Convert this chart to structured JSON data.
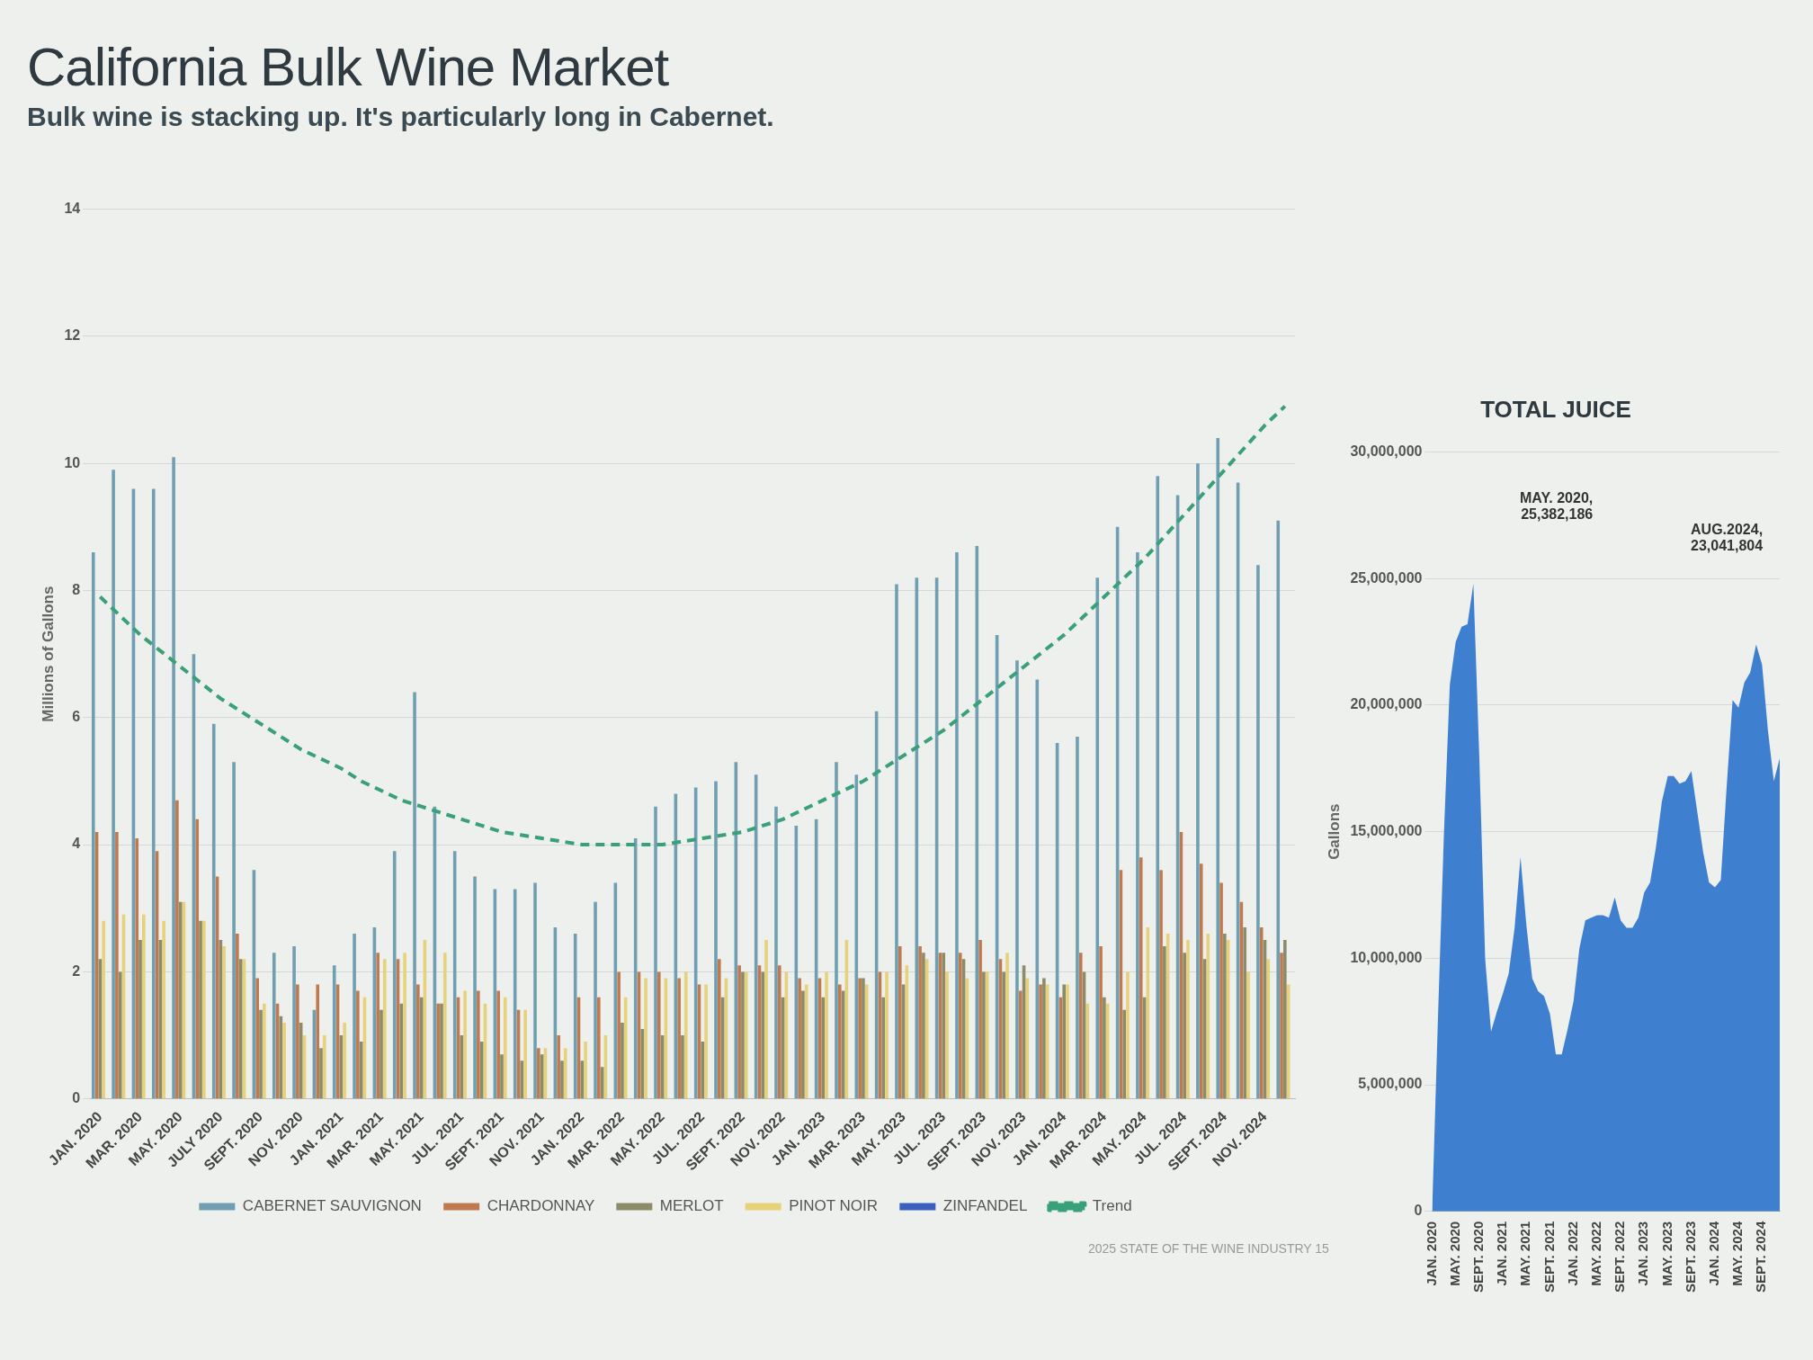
{
  "chart_data": [
    {
      "type": "bar",
      "title": "California Bulk Wine Market",
      "subtitle": "Bulk wine is stacking up. It's particularly long in Cabernet.",
      "ylabel": "Millions of Gallons",
      "categories": [
        "JAN. 2020",
        null,
        "MAR. 2020",
        null,
        "MAY. 2020",
        null,
        "JULY 2020",
        null,
        "SEPT. 2020",
        null,
        "NOV. 2020",
        null,
        "JAN. 2021",
        null,
        "MAR. 2021",
        null,
        "MAY. 2021",
        null,
        "JUL. 2021",
        null,
        "SEPT. 2021",
        null,
        "NOV. 2021",
        null,
        "JAN. 2022",
        null,
        "MAR. 2022",
        null,
        "MAY. 2022",
        null,
        "JUL. 2022",
        null,
        "SEPT. 2022",
        null,
        "NOV. 2022",
        null,
        "JAN. 2023",
        null,
        "MAR. 2023",
        null,
        "MAY. 2023",
        null,
        "JUL. 2023",
        null,
        "SEPT. 2023",
        null,
        "NOV. 2023",
        null,
        "JAN. 2024",
        null,
        "MAR. 2024",
        null,
        "MAY. 2024",
        null,
        "JUL. 2024",
        null,
        "SEPT. 2024",
        null,
        "NOV. 2024",
        null
      ],
      "series": [
        {
          "name": "CABERNET SAUVIGNON",
          "color": "#6f9fb0",
          "values": [
            8.6,
            9.9,
            9.6,
            9.6,
            10.1,
            7.0,
            5.9,
            5.3,
            3.6,
            2.3,
            2.4,
            1.4,
            2.1,
            2.6,
            2.7,
            3.9,
            6.4,
            4.6,
            3.9,
            3.5,
            3.3,
            3.3,
            3.4,
            2.7,
            2.6,
            3.1,
            3.4,
            4.1,
            4.6,
            4.8,
            4.9,
            5.0,
            5.3,
            5.1,
            4.6,
            4.3,
            4.4,
            5.3,
            5.1,
            6.1,
            8.1,
            8.2,
            8.2,
            8.6,
            8.7,
            7.3,
            6.9,
            6.6,
            5.6,
            5.7,
            8.2,
            9.0,
            8.6,
            9.8,
            9.5,
            10.0,
            10.4,
            9.7,
            8.4,
            9.1
          ]
        },
        {
          "name": "CHARDONNAY",
          "color": "#c07a50",
          "values": [
            4.2,
            4.2,
            4.1,
            3.9,
            4.7,
            4.4,
            3.5,
            2.6,
            1.9,
            1.5,
            1.8,
            1.8,
            1.8,
            1.7,
            2.3,
            2.2,
            1.8,
            1.5,
            1.6,
            1.7,
            1.7,
            1.4,
            0.8,
            1.0,
            1.6,
            1.6,
            2.0,
            2.0,
            2.0,
            1.9,
            1.8,
            2.2,
            2.1,
            2.1,
            2.1,
            1.9,
            1.9,
            1.8,
            1.9,
            2.0,
            2.4,
            2.4,
            2.3,
            2.3,
            2.5,
            2.2,
            1.7,
            1.8,
            1.6,
            2.3,
            2.4,
            3.6,
            3.8,
            3.6,
            4.2,
            3.7,
            3.4,
            3.1,
            2.7,
            2.3
          ]
        },
        {
          "name": "MERLOT",
          "color": "#8c8c6a",
          "values": [
            2.2,
            2.0,
            2.5,
            2.5,
            3.1,
            2.8,
            2.5,
            2.2,
            1.4,
            1.3,
            1.2,
            0.8,
            1.0,
            0.9,
            1.4,
            1.5,
            1.6,
            1.5,
            1.0,
            0.9,
            0.7,
            0.6,
            0.7,
            0.6,
            0.6,
            0.5,
            1.2,
            1.1,
            1.0,
            1.0,
            0.9,
            1.6,
            2.0,
            2.0,
            1.6,
            1.7,
            1.6,
            1.7,
            1.9,
            1.6,
            1.8,
            2.3,
            2.3,
            2.2,
            2.0,
            2.0,
            2.1,
            1.9,
            1.8,
            2.0,
            1.6,
            1.4,
            1.6,
            2.4,
            2.3,
            2.2,
            2.6,
            2.7,
            2.5,
            2.5
          ]
        },
        {
          "name": "PINOT NOIR",
          "color": "#e6d27a",
          "values": [
            2.8,
            2.9,
            2.9,
            2.8,
            3.1,
            2.8,
            2.4,
            2.2,
            1.5,
            1.2,
            1.0,
            1.0,
            1.2,
            1.6,
            2.2,
            2.3,
            2.5,
            2.3,
            1.7,
            1.5,
            1.6,
            1.4,
            0.8,
            0.8,
            0.9,
            1.0,
            1.6,
            1.9,
            1.9,
            2.0,
            1.8,
            1.9,
            2.0,
            2.5,
            2.0,
            1.8,
            2.0,
            2.5,
            1.8,
            2.0,
            2.1,
            2.2,
            2.0,
            1.9,
            2.0,
            2.3,
            1.9,
            1.8,
            1.8,
            1.5,
            1.5,
            2.0,
            2.7,
            2.6,
            2.5,
            2.6,
            2.5,
            2.0,
            2.2,
            1.8
          ]
        },
        {
          "name": "ZINFANDEL",
          "color": "#3a5fbf",
          "values": [
            null,
            null,
            null,
            null,
            null,
            null,
            null,
            null,
            null,
            null,
            null,
            null,
            null,
            null,
            null,
            null,
            null,
            null,
            null,
            null,
            null,
            null,
            null,
            null,
            null,
            null,
            null,
            null,
            null,
            null,
            null,
            null,
            null,
            null,
            null,
            null,
            null,
            null,
            null,
            null,
            null,
            null,
            null,
            null,
            null,
            null,
            null,
            null,
            null,
            null,
            null,
            null,
            null,
            null,
            null,
            null,
            null,
            null,
            null,
            null
          ]
        },
        {
          "name": "Trend",
          "type": "line",
          "color": "#3aa07a",
          "line_style": "dashed",
          "marker": "none",
          "values": [
            7.9,
            7.6,
            7.3,
            7.05,
            6.8,
            6.55,
            6.3,
            6.1,
            5.9,
            5.7,
            5.5,
            5.35,
            5.2,
            5.0,
            4.85,
            4.7,
            4.6,
            4.5,
            4.4,
            4.3,
            4.2,
            4.15,
            4.1,
            4.05,
            4.0,
            4.0,
            4.0,
            4.0,
            4.0,
            4.05,
            4.1,
            4.15,
            4.2,
            4.3,
            4.4,
            4.55,
            4.7,
            4.85,
            5.0,
            5.2,
            5.4,
            5.6,
            5.8,
            6.05,
            6.3,
            6.55,
            6.8,
            7.05,
            7.3,
            7.6,
            7.9,
            8.2,
            8.5,
            8.85,
            9.2,
            9.55,
            9.9,
            10.25,
            10.6,
            10.9
          ]
        }
      ],
      "ylim": [
        0,
        14
      ],
      "yticks": [
        0,
        2,
        4,
        6,
        8,
        10,
        12,
        14
      ],
      "grid": "y",
      "legend": "bottom",
      "annotations": [
        "2025 STATE OF THE WINE INDUSTRY 15"
      ]
    },
    {
      "type": "area",
      "title": "TOTAL JUICE",
      "ylabel": "Gallons",
      "color": "#3f7fd0",
      "categories": [
        "JAN. 2020",
        null,
        null,
        null,
        "MAY. 2020",
        null,
        null,
        null,
        "SEPT. 2020",
        null,
        null,
        null,
        "JAN. 2021",
        null,
        null,
        null,
        "MAY. 2021",
        null,
        null,
        null,
        "SEPT. 2021",
        null,
        null,
        null,
        "JAN. 2022",
        null,
        null,
        null,
        "MAY. 2022",
        null,
        null,
        null,
        "SEPT. 2022",
        null,
        null,
        null,
        "JAN. 2023",
        null,
        null,
        null,
        "MAY. 2023",
        null,
        null,
        null,
        "SEPT. 2023",
        null,
        null,
        null,
        "JAN. 2024",
        null,
        null,
        null,
        "MAY. 2024",
        null,
        null,
        null,
        "SEPT. 2024",
        null,
        null,
        null
      ],
      "values": [
        0,
        7700000,
        14900000,
        20800000,
        22500000,
        23100000,
        23200000,
        24800000,
        18000000,
        10000000,
        7100000,
        7900000,
        8600000,
        9400000,
        11200000,
        14000000,
        11300000,
        9200000,
        8700000,
        8500000,
        7800000,
        6200000,
        6200000,
        7200000,
        8300000,
        10400000,
        11500000,
        11600000,
        11700000,
        11700000,
        11600000,
        12400000,
        11500000,
        11200000,
        11200000,
        11600000,
        12600000,
        13000000,
        14400000,
        16200000,
        17200000,
        17200000,
        16900000,
        17000000,
        17400000,
        15800000,
        14200000,
        13000000,
        12800000,
        13100000,
        16800000,
        20200000,
        19900000,
        20900000,
        21300000,
        22400000,
        21600000,
        19000000,
        17000000,
        17900000
      ],
      "ylim": [
        0,
        30000000
      ],
      "yticks": [
        0,
        {
          "value": 5000000,
          "label": "5,000,000"
        },
        {
          "value": 10000000,
          "label": "10,000,000"
        },
        {
          "value": 15000000,
          "label": "15,000,000"
        },
        {
          "value": 20000000,
          "label": "20,000,000"
        },
        {
          "value": 25000000,
          "label": "25,000,000"
        },
        {
          "value": 30000000,
          "label": "30,000,000"
        }
      ],
      "grid": "y",
      "annotations": [
        "MAY. 2020,\n25,382,186",
        "AUG.2024,\n23,041,804"
      ]
    }
  ]
}
